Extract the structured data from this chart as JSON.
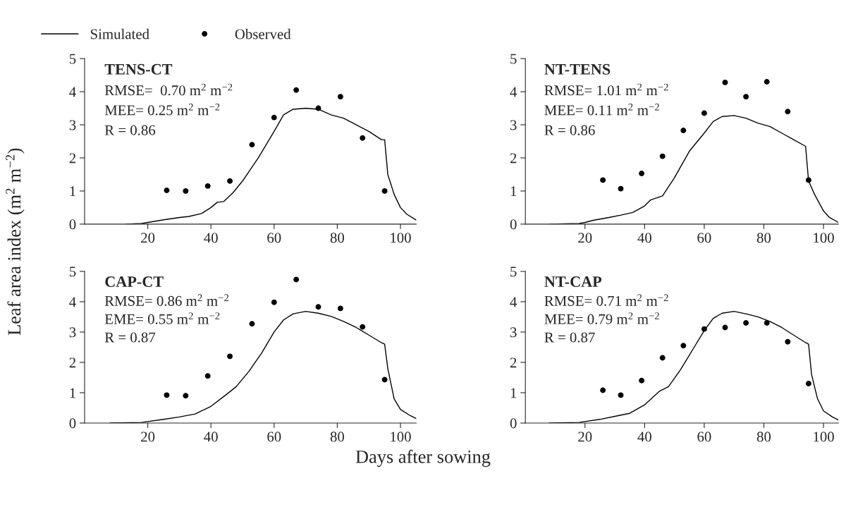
{
  "chart_data": [
    {
      "type": "line",
      "title": "TENS-CT",
      "ylabel": "Leaf area index (m$^{2}$ m$^{−2}$)",
      "legend": "top left",
      "annotations": [
        "RMSE=  0.70 m$^{2}$ m$^{−2}$",
        "MEE= 0.25 m$^{2}$ m$^{−2}$",
        "R = 0.86"
      ],
      "xlim": [
        0,
        105
      ],
      "xticks": [
        20,
        40,
        60,
        80,
        100
      ],
      "ylim": [
        0,
        5
      ],
      "yticks": [
        0,
        1,
        2,
        3,
        4,
        5
      ],
      "series": [
        {
          "name": "Simulated",
          "color": "#000000",
          "x": [
            13,
            18,
            20,
            25,
            30,
            33,
            37,
            40,
            42,
            44,
            47,
            50,
            55,
            60,
            63,
            66,
            70,
            74,
            78,
            82,
            85,
            90,
            94,
            95,
            96,
            98,
            100,
            102,
            105
          ],
          "values": [
            0,
            0.02,
            0.05,
            0.13,
            0.2,
            0.23,
            0.32,
            0.5,
            0.66,
            0.68,
            0.95,
            1.3,
            2.0,
            2.8,
            3.3,
            3.47,
            3.5,
            3.47,
            3.3,
            3.2,
            3.05,
            2.8,
            2.55,
            2.55,
            1.5,
            0.9,
            0.5,
            0.3,
            0.12
          ]
        },
        {
          "name": "Observed",
          "type": "scatter",
          "marker": "circle",
          "color": "#000000",
          "x": [
            26,
            32,
            39,
            46,
            53,
            60,
            67,
            74,
            81,
            88,
            95
          ],
          "values": [
            1.02,
            1.0,
            1.15,
            1.3,
            2.4,
            3.22,
            4.05,
            3.5,
            3.85,
            2.6,
            1.0
          ]
        }
      ]
    },
    {
      "type": "line",
      "title": "NT-TENS",
      "annotations": [
        "RMSE= 1.01 m$^{2}$ m$^{−2}$",
        "MEE= 0.11 m$^{2}$ m$^{−2}$",
        "R = 0.86"
      ],
      "xlim": [
        0,
        105
      ],
      "xticks": [
        20,
        40,
        60,
        80,
        100
      ],
      "ylim": [
        0,
        5
      ],
      "yticks": [
        0,
        1,
        2,
        3,
        4,
        5
      ],
      "series": [
        {
          "color": "#000000",
          "x": [
            8,
            18,
            20,
            23,
            28,
            32,
            36,
            40,
            42,
            46,
            50,
            55,
            60,
            63,
            66,
            70,
            74,
            78,
            82,
            86,
            90,
            94,
            95,
            97,
            100,
            102,
            105
          ],
          "values": [
            0,
            0.02,
            0.05,
            0.12,
            0.2,
            0.27,
            0.35,
            0.55,
            0.73,
            0.85,
            1.4,
            2.2,
            2.75,
            3.1,
            3.25,
            3.28,
            3.2,
            3.05,
            2.95,
            2.75,
            2.55,
            2.35,
            1.3,
            0.9,
            0.4,
            0.2,
            0.05
          ]
        },
        {
          "type": "scatter",
          "marker": "circle",
          "color": "#000000",
          "x": [
            26,
            32,
            39,
            46,
            53,
            60,
            67,
            74,
            81,
            88,
            95
          ],
          "values": [
            1.33,
            1.07,
            1.53,
            2.05,
            2.83,
            3.35,
            4.28,
            3.85,
            4.3,
            3.4,
            1.33
          ]
        }
      ]
    },
    {
      "type": "line",
      "title": "CAP-CT",
      "xlabel": "Days after sowing",
      "annotations": [
        "RMSE= 0.86 m$^{2}$ m$^{−2}$",
        "EME= 0.55 m$^{2}$ m$^{−2}$",
        "R = 0.87"
      ],
      "xlim": [
        0,
        105
      ],
      "xticks": [
        20,
        40,
        60,
        80,
        100
      ],
      "ylim": [
        0,
        5
      ],
      "yticks": [
        0,
        1,
        2,
        3,
        4,
        5
      ],
      "series": [
        {
          "color": "#000000",
          "x": [
            8,
            18,
            20,
            25,
            30,
            35,
            40,
            45,
            48,
            52,
            56,
            60,
            63,
            66,
            70,
            74,
            78,
            82,
            86,
            90,
            94,
            95,
            96,
            98,
            100,
            103,
            105
          ],
          "values": [
            0,
            0.02,
            0.05,
            0.12,
            0.2,
            0.3,
            0.55,
            0.95,
            1.2,
            1.7,
            2.3,
            3.0,
            3.4,
            3.6,
            3.68,
            3.62,
            3.52,
            3.35,
            3.15,
            2.9,
            2.65,
            2.6,
            1.8,
            0.8,
            0.45,
            0.25,
            0.15
          ]
        },
        {
          "type": "scatter",
          "marker": "circle",
          "color": "#000000",
          "x": [
            26,
            32,
            39,
            46,
            53,
            60,
            67,
            74,
            81,
            88,
            95
          ],
          "values": [
            0.92,
            0.9,
            1.55,
            2.2,
            3.27,
            3.98,
            4.73,
            3.83,
            3.78,
            3.17,
            1.43
          ]
        }
      ]
    },
    {
      "type": "line",
      "title": "NT-CAP",
      "annotations": [
        "RMSE= 0.71 m$^{2}$ m$^{−2}$",
        "MEE= 0.79 m$^{2}$ m$^{−2}$",
        "R = 0.87"
      ],
      "xlim": [
        0,
        105
      ],
      "xticks": [
        20,
        40,
        60,
        80,
        100
      ],
      "ylim": [
        0,
        5
      ],
      "yticks": [
        0,
        1,
        2,
        3,
        4,
        5
      ],
      "series": [
        {
          "color": "#000000",
          "x": [
            8,
            18,
            20,
            25,
            30,
            35,
            40,
            45,
            48,
            52,
            56,
            60,
            63,
            66,
            70,
            74,
            78,
            82,
            86,
            90,
            94,
            95,
            96,
            98,
            100,
            103,
            105
          ],
          "values": [
            0,
            0.02,
            0.05,
            0.12,
            0.22,
            0.32,
            0.6,
            1.05,
            1.2,
            1.75,
            2.4,
            3.05,
            3.45,
            3.62,
            3.68,
            3.6,
            3.5,
            3.35,
            3.15,
            2.9,
            2.65,
            2.6,
            1.6,
            0.8,
            0.4,
            0.2,
            0.1
          ]
        },
        {
          "type": "scatter",
          "marker": "circle",
          "color": "#000000",
          "x": [
            26,
            32,
            39,
            46,
            53,
            60,
            67,
            74,
            81,
            88,
            95
          ],
          "values": [
            1.08,
            0.92,
            1.4,
            2.15,
            2.55,
            3.1,
            3.15,
            3.3,
            3.3,
            2.68,
            1.3
          ]
        }
      ]
    }
  ]
}
